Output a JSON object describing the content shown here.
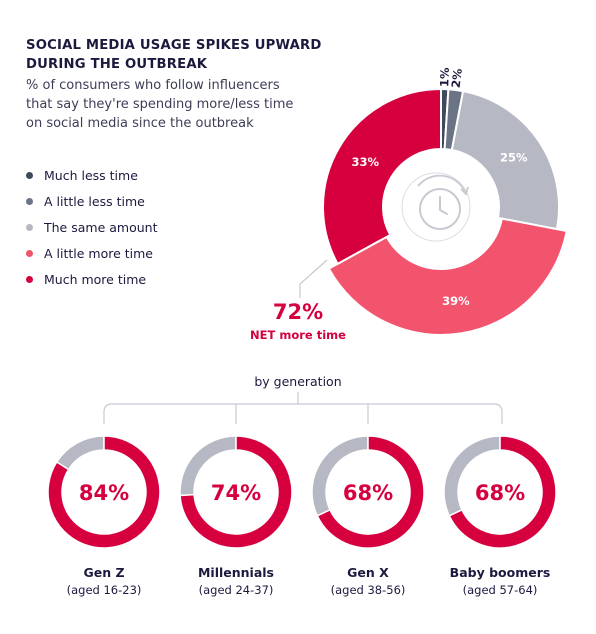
{
  "title": "SOCIAL MEDIA USAGE SPIKES UPWARD DURING THE OUTBREAK",
  "subtitle": "% of consumers who follow influencers that say they're spending more/less time on social media since the outbreak",
  "net": {
    "value": "72%",
    "label": "NET more time"
  },
  "by_generation_label": "by generation",
  "center_icon": "clock-refresh-icon",
  "colors": {
    "much_less": "#3e4a5c",
    "little_less": "#6b7485",
    "same": "#b6b9c4",
    "little_more": "#f2546e",
    "much_more": "#d6003f"
  },
  "chart_data": [
    {
      "type": "pie",
      "variant": "donut",
      "categories": [
        "Much less time",
        "A little less time",
        "The same amount",
        "A little more time",
        "Much more time"
      ],
      "values": [
        1,
        2,
        25,
        39,
        33
      ],
      "labels": [
        "1%",
        "2%",
        "25%",
        "39%",
        "33%"
      ],
      "legend": "left"
    },
    {
      "type": "pie",
      "variant": "donut",
      "title": "by generation",
      "categories": [
        "Gen Z",
        "Millennials",
        "Gen X",
        "Baby boomers"
      ],
      "ages": [
        "(aged 16-23)",
        "(aged 24-37)",
        "(aged 38-56)",
        "(aged 57-64)"
      ],
      "values": [
        84,
        74,
        68,
        68
      ],
      "labels": [
        "84%",
        "74%",
        "68%",
        "68%"
      ]
    }
  ]
}
